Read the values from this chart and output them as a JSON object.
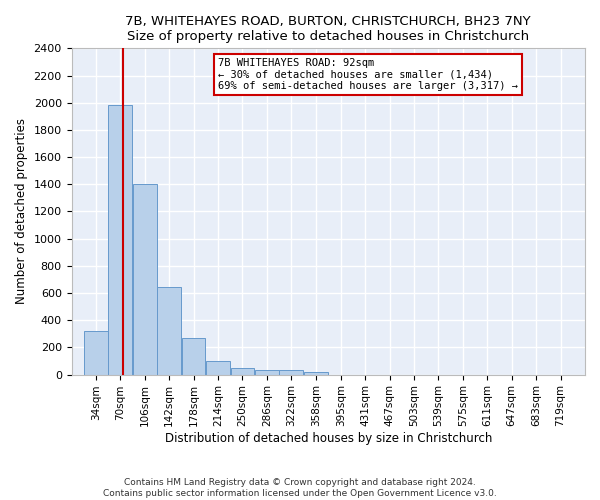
{
  "title1": "7B, WHITEHAYES ROAD, BURTON, CHRISTCHURCH, BH23 7NY",
  "title2": "Size of property relative to detached houses in Christchurch",
  "xlabel": "Distribution of detached houses by size in Christchurch",
  "ylabel": "Number of detached properties",
  "footer1": "Contains HM Land Registry data © Crown copyright and database right 2024.",
  "footer2": "Contains public sector information licensed under the Open Government Licence v3.0.",
  "annotation_line1": "7B WHITEHAYES ROAD: 92sqm",
  "annotation_line2": "← 30% of detached houses are smaller (1,434)",
  "annotation_line3": "69% of semi-detached houses are larger (3,317) →",
  "bar_edges": [
    34,
    70,
    106,
    142,
    178,
    214,
    250,
    286,
    322,
    358,
    395,
    431,
    467,
    503,
    539,
    575,
    611,
    647,
    683,
    719,
    755
  ],
  "bar_heights": [
    320,
    1980,
    1400,
    645,
    270,
    100,
    45,
    35,
    35,
    20,
    0,
    0,
    0,
    0,
    0,
    0,
    0,
    0,
    0,
    0
  ],
  "bar_color": "#b8d0ea",
  "bar_edge_color": "#6699cc",
  "property_size": 92,
  "red_line_color": "#cc0000",
  "annotation_box_color": "#cc0000",
  "background_color": "#e8eef8",
  "grid_color": "#ffffff",
  "ylim": [
    0,
    2400
  ],
  "yticks": [
    0,
    200,
    400,
    600,
    800,
    1000,
    1200,
    1400,
    1600,
    1800,
    2000,
    2200,
    2400
  ],
  "title1_fontsize": 9.5,
  "title2_fontsize": 9.0,
  "xlabel_fontsize": 8.5,
  "ylabel_fontsize": 8.5,
  "tick_fontsize": 8.0,
  "xtick_fontsize": 7.5,
  "footer_fontsize": 6.5,
  "annotation_fontsize": 7.5
}
